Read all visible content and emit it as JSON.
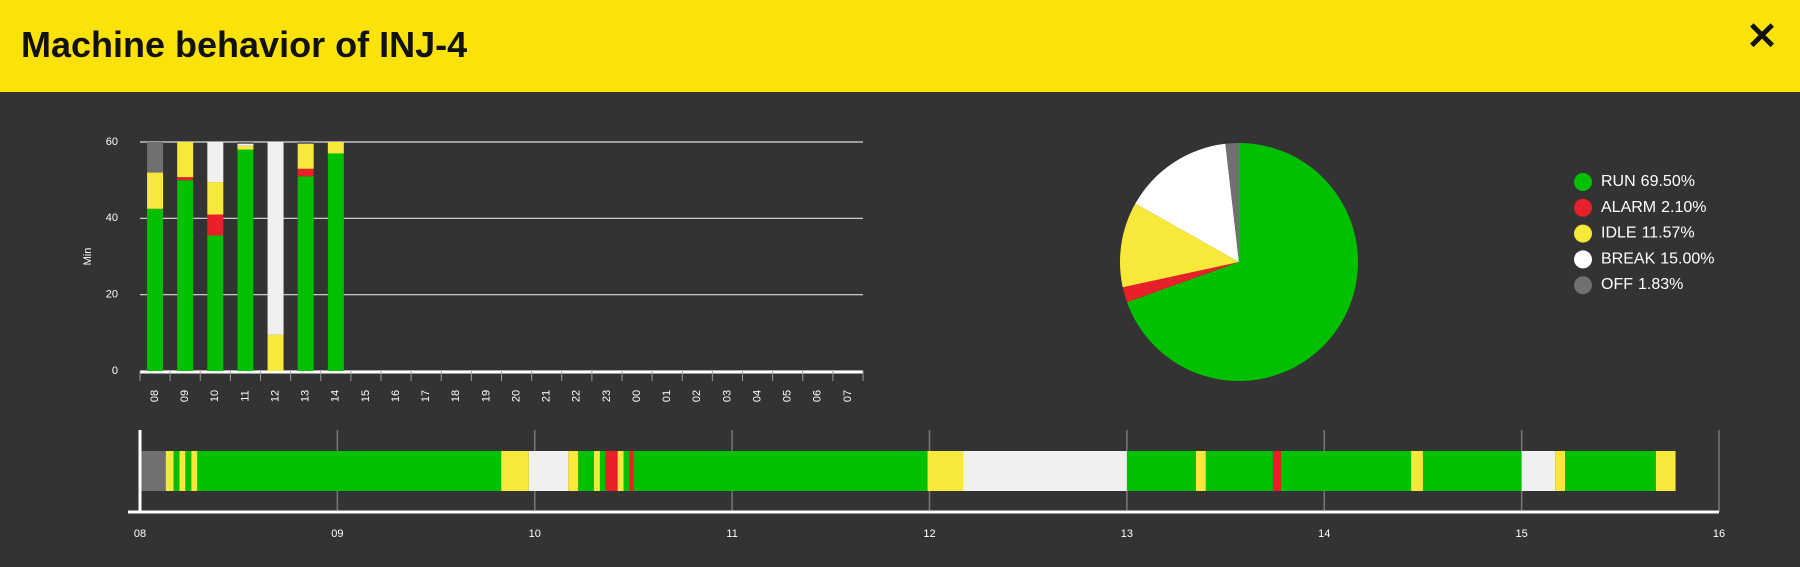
{
  "header": {
    "title": "Machine behavior of INJ-4"
  },
  "chart_data": [
    {
      "type": "bar",
      "y_label": "Min",
      "categories": [
        "08",
        "09",
        "10",
        "11",
        "12",
        "13",
        "14",
        "15",
        "16",
        "17",
        "18",
        "19",
        "20",
        "21",
        "22",
        "23",
        "00",
        "01",
        "02",
        "03",
        "04",
        "05",
        "06",
        "07"
      ],
      "series": [
        {
          "color": "#00c000",
          "values": [
            42.5,
            50,
            35.5,
            58,
            0,
            51,
            57,
            null,
            null,
            null,
            null,
            null,
            null,
            null,
            null,
            null,
            null,
            null,
            null,
            null,
            null,
            null,
            null,
            null
          ]
        },
        {
          "color": "#e8202a",
          "values": [
            0,
            0.8,
            5.5,
            0,
            0,
            2,
            0,
            null,
            null,
            null,
            null,
            null,
            null,
            null,
            null,
            null,
            null,
            null,
            null,
            null,
            null,
            null,
            null,
            null
          ]
        },
        {
          "color": "#f8e83a",
          "values": [
            9.5,
            9.2,
            8.5,
            1,
            9.5,
            6.5,
            3,
            null,
            null,
            null,
            null,
            null,
            null,
            null,
            null,
            null,
            null,
            null,
            null,
            null,
            null,
            null,
            null,
            null
          ]
        },
        {
          "color": "#f0f0f0",
          "values": [
            0,
            0,
            10.5,
            0.5,
            50.5,
            0,
            0,
            null,
            null,
            null,
            null,
            null,
            null,
            null,
            null,
            null,
            null,
            null,
            null,
            null,
            null,
            null,
            null,
            null
          ]
        },
        {
          "color": "#707070",
          "values": [
            8,
            0,
            0,
            0.5,
            0,
            0.5,
            0,
            null,
            null,
            null,
            null,
            null,
            null,
            null,
            null,
            null,
            null,
            null,
            null,
            null,
            null,
            null,
            null,
            null
          ]
        }
      ],
      "ylim": [
        0,
        60
      ],
      "yticks": [
        0,
        20,
        40,
        60
      ],
      "grid": true
    },
    {
      "type": "pie",
      "categories": [
        "RUN",
        "ALARM",
        "IDLE",
        "BREAK",
        "OFF"
      ],
      "values": [
        69.5,
        2.1,
        11.57,
        15,
        1.83
      ],
      "value_labels": [
        "69.50%",
        "2.10%",
        "11.57%",
        "15.00%",
        "1.83%"
      ],
      "colors": [
        "#00c000",
        "#e8202a",
        "#f8e83a",
        "#ffffff",
        "#707070"
      ],
      "legend": "right"
    },
    {
      "type": "timeline",
      "xlim": [
        8,
        16
      ],
      "xticks": [
        {
          "value": 8,
          "label": "08"
        },
        {
          "value": 9,
          "label": "09"
        },
        {
          "value": 10,
          "label": "10"
        },
        {
          "value": 11,
          "label": "11"
        },
        {
          "value": 12,
          "label": "12"
        },
        {
          "value": 13,
          "label": "13"
        },
        {
          "value": 14,
          "label": "14"
        },
        {
          "value": 15,
          "label": "15"
        },
        {
          "value": 16,
          "label": "16"
        }
      ],
      "series": [
        {
          "color": "#00c000",
          "ranges": [
            [
              8.17,
              8.2
            ],
            [
              8.23,
              8.26
            ],
            [
              8.29,
              9.83
            ],
            [
              10.22,
              10.3
            ],
            [
              10.33,
              10.36
            ],
            [
              10.45,
              10.48
            ],
            [
              10.5,
              11.99
            ],
            [
              13,
              13.35
            ],
            [
              13.4,
              13.74
            ],
            [
              13.78,
              14.44
            ],
            [
              14.5,
              15
            ],
            [
              15.22,
              15.68
            ]
          ]
        },
        {
          "color": "#e8202a",
          "ranges": [
            [
              10.36,
              10.42
            ],
            [
              10.48,
              10.5
            ],
            [
              13.74,
              13.78
            ]
          ]
        },
        {
          "color": "#f8e83a",
          "ranges": [
            [
              8.13,
              8.17
            ],
            [
              8.2,
              8.23
            ],
            [
              8.26,
              8.29
            ],
            [
              9.83,
              9.97
            ],
            [
              10.17,
              10.22
            ],
            [
              10.3,
              10.33
            ],
            [
              10.42,
              10.45
            ],
            [
              11.99,
              12.17
            ],
            [
              13.35,
              13.4
            ],
            [
              14.44,
              14.5
            ],
            [
              15.17,
              15.22
            ],
            [
              15.68,
              15.78
            ]
          ]
        },
        {
          "color": "#f0f0f0",
          "ranges": [
            [
              9.97,
              10.17
            ],
            [
              12.17,
              13
            ],
            [
              15,
              15.17
            ]
          ]
        },
        {
          "color": "#707070",
          "ranges": [
            [
              8,
              8.13
            ]
          ]
        }
      ]
    }
  ]
}
